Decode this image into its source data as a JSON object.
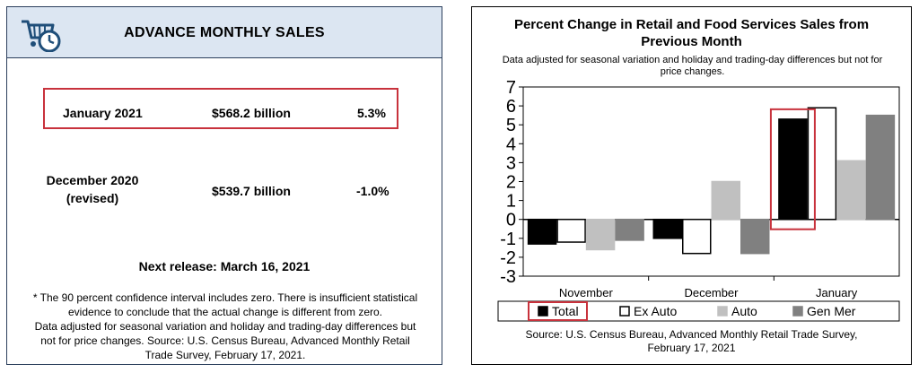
{
  "left": {
    "title": "ADVANCE MONTHLY SALES",
    "rows": [
      {
        "period": "January 2021",
        "value": "$568.2 billion",
        "change": "5.3%"
      },
      {
        "period_line1": "December 2020",
        "period_line2": "(revised)",
        "value": "$539.7 billion",
        "change": "-1.0%"
      }
    ],
    "next_release": "Next release: March 16, 2021",
    "footnote": [
      "* The 90 percent confidence interval includes zero. There is insufficient statistical",
      "evidence to conclude that the actual change is different from zero.",
      "Data adjusted for seasonal variation and holiday and trading-day differences but",
      "not for price changes. Source: U.S. Census Bureau, Advanced Monthly Retail",
      "Trade Survey, February 17, 2021."
    ],
    "colors": {
      "header_bg": "#dce6f2",
      "highlight": "#c8323c",
      "icon": "#1f4e79"
    },
    "icon": "shopping-cart-clock-icon"
  },
  "chart_data": {
    "type": "bar",
    "title_lines": [
      "Percent Change in Retail and Food Services Sales from",
      "Previous Month"
    ],
    "subtitle_lines": [
      "Data adjusted for seasonal variation and holiday and trading-day differences but not for",
      "price changes."
    ],
    "categories": [
      "November",
      "December",
      "January"
    ],
    "series": [
      {
        "name": "Total",
        "values": [
          -1.3,
          -1.0,
          5.3
        ],
        "fill": "#000000",
        "stroke": "#000000"
      },
      {
        "name": "Ex Auto",
        "values": [
          -1.2,
          -1.8,
          5.9
        ],
        "fill": "#ffffff",
        "stroke": "#000000"
      },
      {
        "name": "Auto",
        "values": [
          -1.6,
          2.0,
          3.1
        ],
        "fill": "#c0c0c0",
        "stroke": "#c0c0c0"
      },
      {
        "name": "Gen Mer",
        "values": [
          -1.1,
          -1.8,
          5.5
        ],
        "fill": "#808080",
        "stroke": "#808080"
      }
    ],
    "ylim": [
      -3,
      7
    ],
    "yticks": [
      -3,
      -2,
      -1,
      0,
      1,
      2,
      3,
      4,
      5,
      6,
      7
    ],
    "grid": false,
    "legend": "bottom",
    "highlight": {
      "category": "January",
      "series": "Total",
      "color": "#c8323c"
    },
    "source_lines": [
      "Source: U.S. Census Bureau, Advanced Monthly Retail Trade Survey,",
      "February 17, 2021"
    ]
  }
}
